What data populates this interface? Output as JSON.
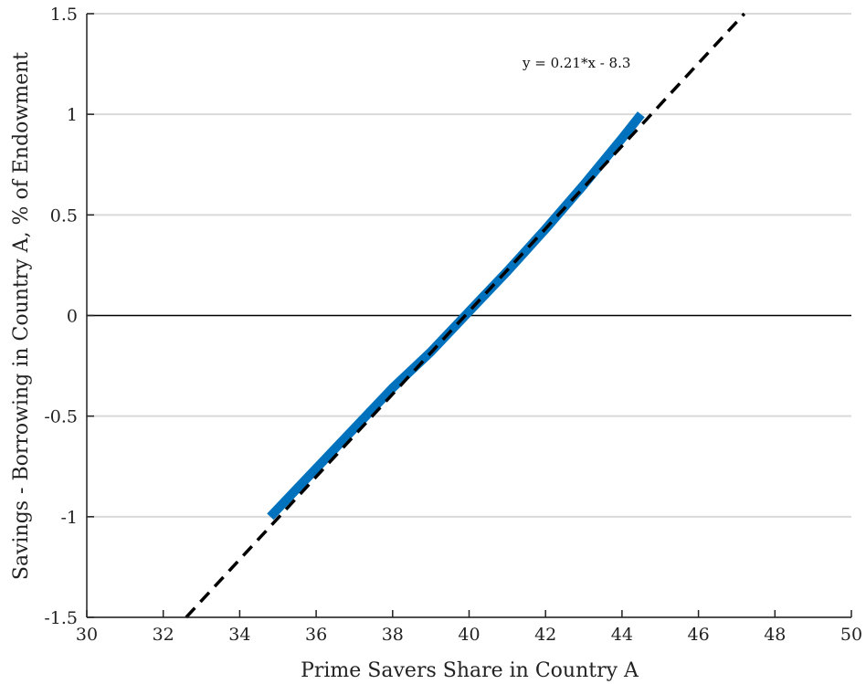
{
  "chart_data": {
    "type": "line",
    "xlabel": "Prime Savers Share in Country A",
    "ylabel": "Savings - Borrowing in Country A, % of Endowment",
    "xlim": [
      30,
      50
    ],
    "ylim": [
      -1.5,
      1.5
    ],
    "x_ticks": [
      "30",
      "32",
      "34",
      "36",
      "38",
      "40",
      "42",
      "44",
      "46",
      "48",
      "50"
    ],
    "y_ticks": [
      "-1.5",
      "-1",
      "-0.5",
      "0",
      "0.5",
      "1",
      "1.5"
    ],
    "grid": "horizontal",
    "zero_line": true,
    "series": [
      {
        "style": "solid",
        "color": "#0072BD",
        "x": [
          34.8,
          36.0,
          37.0,
          38.0,
          39.0,
          40.0,
          41.0,
          42.0,
          43.0,
          44.0,
          44.5
        ],
        "y": [
          -1.0,
          -0.76,
          -0.56,
          -0.36,
          -0.18,
          0.02,
          0.22,
          0.43,
          0.65,
          0.88,
          1.0
        ]
      },
      {
        "style": "dashed",
        "color": "#000000",
        "x": [
          32.6,
          47.2
        ],
        "y": [
          -1.5,
          1.5
        ]
      }
    ],
    "annotation": "y = 0.21*x - 8.3"
  }
}
